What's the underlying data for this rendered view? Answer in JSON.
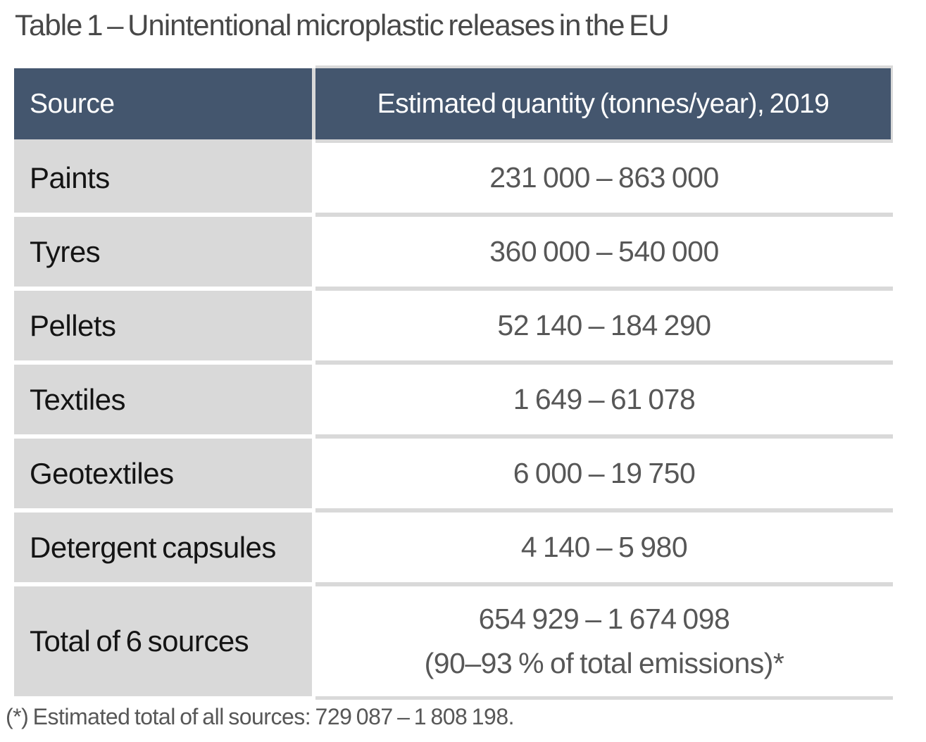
{
  "title": "Table 1 – Unintentional microplastic releases in the EU",
  "table": {
    "headers": {
      "source": "Source",
      "quantity": "Estimated quantity (tonnes/year), 2019"
    },
    "rows": [
      {
        "source": "Paints",
        "value": "231 000 – 863 000"
      },
      {
        "source": "Tyres",
        "value": "360 000 – 540 000"
      },
      {
        "source": "Pellets",
        "value": "52 140 – 184 290"
      },
      {
        "source": "Textiles",
        "value": "1 649 – 61 078"
      },
      {
        "source": "Geotextiles",
        "value": "6 000 – 19 750"
      },
      {
        "source": "Detergent capsules",
        "value": "4 140 – 5 980"
      }
    ],
    "total_row": {
      "source": "Total of 6 sources",
      "value_line1": "654 929 – 1 674 098",
      "value_line2": "(90–93 % of total emissions)*"
    }
  },
  "footnote": "(*) Estimated total of all sources: 729 087 – 1 808 198.",
  "colors": {
    "header_bg": "#44566e",
    "header_text": "#ffffff",
    "row_label_bg": "#d9d9d9",
    "separator": "#d9d9d9",
    "label_text": "#141414",
    "value_text": "#575757",
    "title_text": "#484848"
  }
}
